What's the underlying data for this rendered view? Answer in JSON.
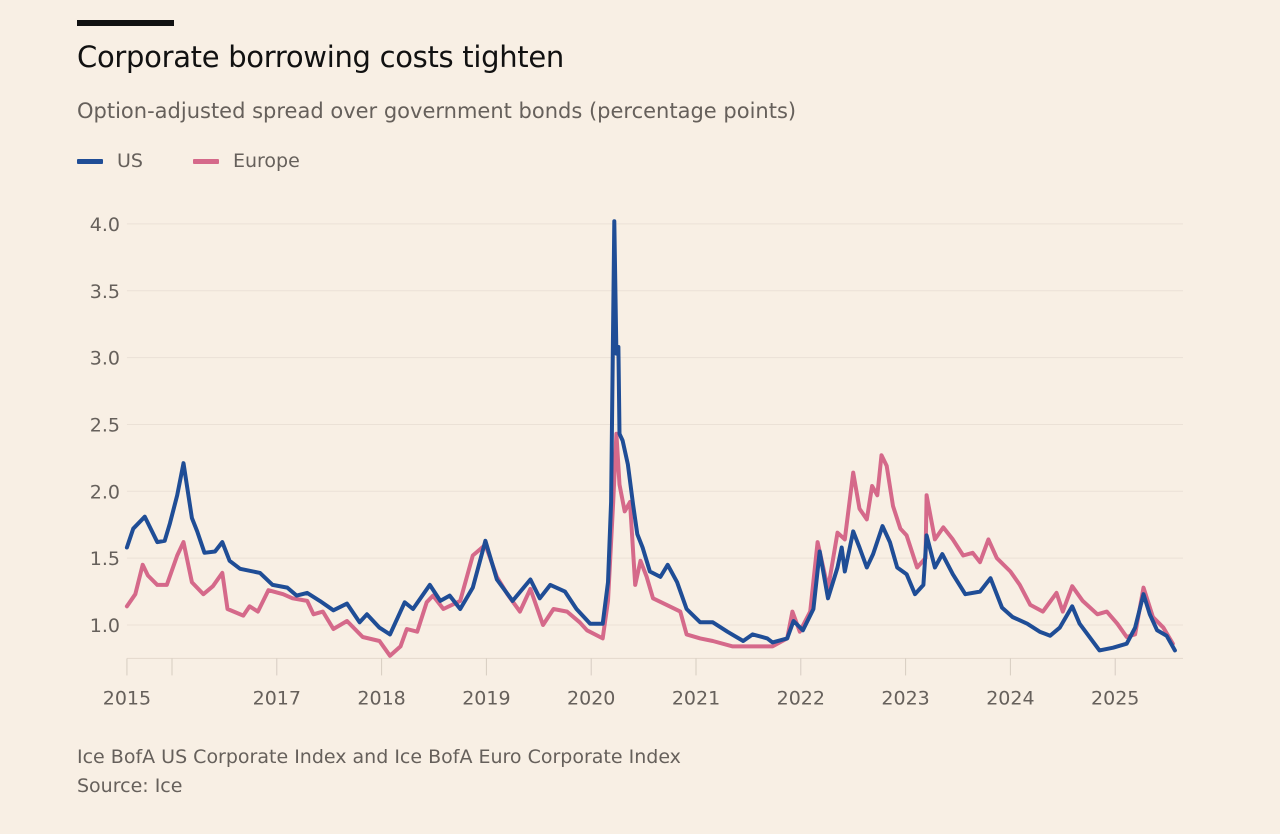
{
  "chart_data": {
    "type": "line",
    "title": "Corporate borrowing costs tighten",
    "subtitle": "Option-adjusted spread over government bonds (percentage points)",
    "xlabel": "",
    "ylabel": "",
    "xlim": [
      2015.57,
      2025.6
    ],
    "ylim": [
      0.75,
      4.0
    ],
    "grid": true,
    "legend_placement": "top-left",
    "y_ticks": [
      {
        "value": 1.0,
        "label": "1.0"
      },
      {
        "value": 1.5,
        "label": "1.5"
      },
      {
        "value": 2.0,
        "label": "2.0"
      },
      {
        "value": 2.5,
        "label": "2.5"
      },
      {
        "value": 3.0,
        "label": "3.0"
      },
      {
        "value": 3.5,
        "label": "3.5"
      },
      {
        "value": 4.0,
        "label": "4.0"
      }
    ],
    "x_ticks": [
      {
        "value": 2015.57,
        "label": "2015"
      },
      {
        "value": 2016,
        "label": ""
      },
      {
        "value": 2017,
        "label": "2017"
      },
      {
        "value": 2018,
        "label": "2018"
      },
      {
        "value": 2019,
        "label": "2019"
      },
      {
        "value": 2020,
        "label": "2020"
      },
      {
        "value": 2021,
        "label": "2021"
      },
      {
        "value": 2022,
        "label": "2022"
      },
      {
        "value": 2023,
        "label": "2023"
      },
      {
        "value": 2024,
        "label": "2024"
      },
      {
        "value": 2025,
        "label": "2025"
      }
    ],
    "series": [
      {
        "name": "US",
        "color": "#1f4d96",
        "points": [
          [
            2015.57,
            1.58
          ],
          [
            2015.63,
            1.72
          ],
          [
            2015.74,
            1.81
          ],
          [
            2015.86,
            1.62
          ],
          [
            2015.93,
            1.63
          ],
          [
            2015.98,
            1.76
          ],
          [
            2016.05,
            1.97
          ],
          [
            2016.11,
            2.21
          ],
          [
            2016.19,
            1.8
          ],
          [
            2016.24,
            1.7
          ],
          [
            2016.31,
            1.54
          ],
          [
            2016.41,
            1.55
          ],
          [
            2016.48,
            1.62
          ],
          [
            2016.55,
            1.48
          ],
          [
            2016.65,
            1.42
          ],
          [
            2016.84,
            1.39
          ],
          [
            2016.96,
            1.3
          ],
          [
            2017.1,
            1.28
          ],
          [
            2017.19,
            1.22
          ],
          [
            2017.29,
            1.24
          ],
          [
            2017.41,
            1.18
          ],
          [
            2017.54,
            1.11
          ],
          [
            2017.67,
            1.16
          ],
          [
            2017.79,
            1.02
          ],
          [
            2017.86,
            1.08
          ],
          [
            2017.98,
            0.98
          ],
          [
            2018.08,
            0.93
          ],
          [
            2018.22,
            1.17
          ],
          [
            2018.3,
            1.12
          ],
          [
            2018.46,
            1.3
          ],
          [
            2018.56,
            1.18
          ],
          [
            2018.65,
            1.22
          ],
          [
            2018.75,
            1.12
          ],
          [
            2018.87,
            1.28
          ],
          [
            2018.99,
            1.63
          ],
          [
            2019.1,
            1.34
          ],
          [
            2019.25,
            1.18
          ],
          [
            2019.42,
            1.34
          ],
          [
            2019.51,
            1.2
          ],
          [
            2019.61,
            1.3
          ],
          [
            2019.75,
            1.25
          ],
          [
            2019.86,
            1.12
          ],
          [
            2019.99,
            1.01
          ],
          [
            2020.11,
            1.01
          ],
          [
            2020.16,
            1.32
          ],
          [
            2020.19,
            1.92
          ],
          [
            2020.22,
            4.02
          ],
          [
            2020.24,
            3.03
          ],
          [
            2020.26,
            3.08
          ],
          [
            2020.27,
            2.43
          ],
          [
            2020.3,
            2.38
          ],
          [
            2020.35,
            2.2
          ],
          [
            2020.4,
            1.9
          ],
          [
            2020.44,
            1.68
          ],
          [
            2020.49,
            1.58
          ],
          [
            2020.56,
            1.4
          ],
          [
            2020.66,
            1.36
          ],
          [
            2020.73,
            1.45
          ],
          [
            2020.82,
            1.32
          ],
          [
            2020.91,
            1.12
          ],
          [
            2021.04,
            1.02
          ],
          [
            2021.16,
            1.02
          ],
          [
            2021.3,
            0.95
          ],
          [
            2021.45,
            0.88
          ],
          [
            2021.54,
            0.93
          ],
          [
            2021.68,
            0.9
          ],
          [
            2021.73,
            0.87
          ],
          [
            2021.87,
            0.9
          ],
          [
            2021.93,
            1.03
          ],
          [
            2022.02,
            0.96
          ],
          [
            2022.12,
            1.12
          ],
          [
            2022.18,
            1.55
          ],
          [
            2022.26,
            1.2
          ],
          [
            2022.35,
            1.43
          ],
          [
            2022.39,
            1.58
          ],
          [
            2022.42,
            1.4
          ],
          [
            2022.5,
            1.7
          ],
          [
            2022.56,
            1.58
          ],
          [
            2022.63,
            1.43
          ],
          [
            2022.69,
            1.53
          ],
          [
            2022.78,
            1.74
          ],
          [
            2022.85,
            1.62
          ],
          [
            2022.92,
            1.43
          ],
          [
            2023.01,
            1.38
          ],
          [
            2023.09,
            1.23
          ],
          [
            2023.17,
            1.3
          ],
          [
            2023.2,
            1.67
          ],
          [
            2023.28,
            1.43
          ],
          [
            2023.35,
            1.53
          ],
          [
            2023.45,
            1.38
          ],
          [
            2023.57,
            1.23
          ],
          [
            2023.71,
            1.25
          ],
          [
            2023.81,
            1.35
          ],
          [
            2023.92,
            1.13
          ],
          [
            2024.02,
            1.06
          ],
          [
            2024.16,
            1.01
          ],
          [
            2024.28,
            0.95
          ],
          [
            2024.38,
            0.92
          ],
          [
            2024.47,
            0.98
          ],
          [
            2024.59,
            1.14
          ],
          [
            2024.66,
            1.01
          ],
          [
            2024.85,
            0.81
          ],
          [
            2024.98,
            0.83
          ],
          [
            2025.11,
            0.86
          ],
          [
            2025.19,
            0.98
          ],
          [
            2025.27,
            1.23
          ],
          [
            2025.33,
            1.08
          ],
          [
            2025.4,
            0.96
          ],
          [
            2025.49,
            0.92
          ],
          [
            2025.57,
            0.81
          ]
        ]
      },
      {
        "name": "Europe",
        "color": "#d5698a",
        "points": [
          [
            2015.57,
            1.14
          ],
          [
            2015.65,
            1.23
          ],
          [
            2015.72,
            1.45
          ],
          [
            2015.77,
            1.37
          ],
          [
            2015.86,
            1.3
          ],
          [
            2015.95,
            1.3
          ],
          [
            2016.05,
            1.52
          ],
          [
            2016.11,
            1.62
          ],
          [
            2016.19,
            1.32
          ],
          [
            2016.3,
            1.23
          ],
          [
            2016.39,
            1.29
          ],
          [
            2016.48,
            1.39
          ],
          [
            2016.53,
            1.12
          ],
          [
            2016.68,
            1.07
          ],
          [
            2016.74,
            1.14
          ],
          [
            2016.82,
            1.1
          ],
          [
            2016.92,
            1.26
          ],
          [
            2017.06,
            1.23
          ],
          [
            2017.15,
            1.2
          ],
          [
            2017.29,
            1.18
          ],
          [
            2017.35,
            1.08
          ],
          [
            2017.44,
            1.1
          ],
          [
            2017.54,
            0.97
          ],
          [
            2017.67,
            1.03
          ],
          [
            2017.82,
            0.91
          ],
          [
            2017.98,
            0.88
          ],
          [
            2018.08,
            0.77
          ],
          [
            2018.18,
            0.84
          ],
          [
            2018.24,
            0.97
          ],
          [
            2018.34,
            0.95
          ],
          [
            2018.43,
            1.17
          ],
          [
            2018.49,
            1.22
          ],
          [
            2018.59,
            1.12
          ],
          [
            2018.75,
            1.18
          ],
          [
            2018.87,
            1.52
          ],
          [
            2018.99,
            1.6
          ],
          [
            2019.1,
            1.36
          ],
          [
            2019.2,
            1.23
          ],
          [
            2019.32,
            1.1
          ],
          [
            2019.42,
            1.27
          ],
          [
            2019.54,
            1.0
          ],
          [
            2019.64,
            1.12
          ],
          [
            2019.77,
            1.1
          ],
          [
            2019.89,
            1.02
          ],
          [
            2019.96,
            0.96
          ],
          [
            2020.11,
            0.9
          ],
          [
            2020.16,
            1.18
          ],
          [
            2020.21,
            1.92
          ],
          [
            2020.24,
            2.43
          ],
          [
            2020.27,
            2.05
          ],
          [
            2020.32,
            1.85
          ],
          [
            2020.37,
            1.92
          ],
          [
            2020.42,
            1.3
          ],
          [
            2020.47,
            1.48
          ],
          [
            2020.53,
            1.36
          ],
          [
            2020.59,
            1.2
          ],
          [
            2020.72,
            1.15
          ],
          [
            2020.85,
            1.1
          ],
          [
            2020.91,
            0.93
          ],
          [
            2021.04,
            0.9
          ],
          [
            2021.16,
            0.88
          ],
          [
            2021.35,
            0.84
          ],
          [
            2021.54,
            0.84
          ],
          [
            2021.73,
            0.84
          ],
          [
            2021.87,
            0.9
          ],
          [
            2021.92,
            1.1
          ],
          [
            2021.99,
            0.95
          ],
          [
            2022.09,
            1.1
          ],
          [
            2022.16,
            1.62
          ],
          [
            2022.26,
            1.27
          ],
          [
            2022.35,
            1.69
          ],
          [
            2022.42,
            1.64
          ],
          [
            2022.5,
            2.14
          ],
          [
            2022.56,
            1.87
          ],
          [
            2022.63,
            1.79
          ],
          [
            2022.68,
            2.04
          ],
          [
            2022.73,
            1.97
          ],
          [
            2022.77,
            2.27
          ],
          [
            2022.82,
            2.19
          ],
          [
            2022.88,
            1.89
          ],
          [
            2022.95,
            1.72
          ],
          [
            2023.01,
            1.67
          ],
          [
            2023.11,
            1.43
          ],
          [
            2023.19,
            1.5
          ],
          [
            2023.2,
            1.97
          ],
          [
            2023.28,
            1.64
          ],
          [
            2023.36,
            1.73
          ],
          [
            2023.45,
            1.64
          ],
          [
            2023.55,
            1.52
          ],
          [
            2023.64,
            1.54
          ],
          [
            2023.71,
            1.47
          ],
          [
            2023.79,
            1.64
          ],
          [
            2023.87,
            1.5
          ],
          [
            2024.0,
            1.4
          ],
          [
            2024.09,
            1.3
          ],
          [
            2024.19,
            1.15
          ],
          [
            2024.31,
            1.1
          ],
          [
            2024.44,
            1.24
          ],
          [
            2024.5,
            1.1
          ],
          [
            2024.59,
            1.29
          ],
          [
            2024.69,
            1.18
          ],
          [
            2024.83,
            1.08
          ],
          [
            2024.92,
            1.1
          ],
          [
            2025.02,
            1.01
          ],
          [
            2025.11,
            0.91
          ],
          [
            2025.19,
            0.93
          ],
          [
            2025.27,
            1.28
          ],
          [
            2025.36,
            1.06
          ],
          [
            2025.46,
            0.98
          ],
          [
            2025.55,
            0.86
          ]
        ]
      }
    ]
  },
  "legend": [
    {
      "label": "US",
      "color": "#1f4d96"
    },
    {
      "label": "Europe",
      "color": "#d5698a"
    }
  ],
  "footnote": "Ice BofA US Corporate Index and Ice BofA Euro Corporate Index",
  "source": "Source: Ice"
}
